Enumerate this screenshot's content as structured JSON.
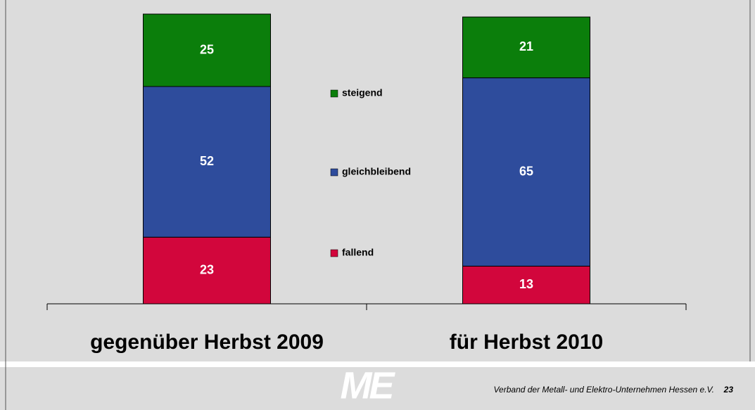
{
  "chart_data": {
    "type": "stacked_bar",
    "categories": [
      "gegenüber Herbst 2009",
      "für Herbst 2010"
    ],
    "series": [
      {
        "name": "fallend",
        "color": "#d2063c",
        "values": [
          23,
          13
        ]
      },
      {
        "name": "gleichbleibend",
        "color": "#2e4c9c",
        "values": [
          52,
          65
        ]
      },
      {
        "name": "steigend",
        "color": "#0b7e0b",
        "values": [
          25,
          21
        ]
      }
    ],
    "ylim": [
      0,
      100
    ]
  },
  "footer": {
    "logo": "ME",
    "text": "Verband der Metall- und Elektro-Unternehmen Hessen e.V.",
    "page": "23"
  }
}
